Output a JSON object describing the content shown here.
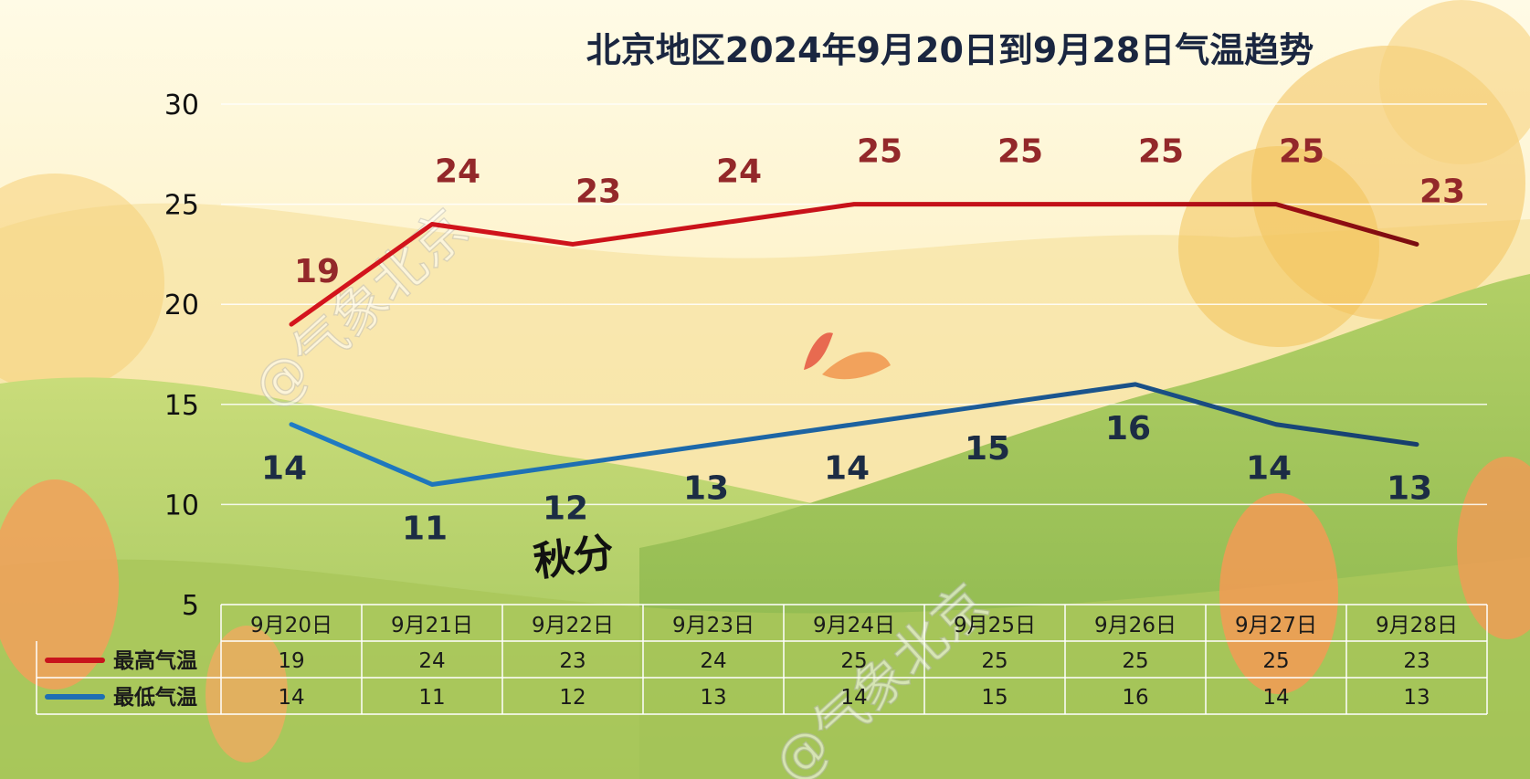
{
  "chart_data": {
    "type": "line",
    "title": "北京地区2024年9月20日到9月28日气温趋势",
    "categories": [
      "9月20日",
      "9月21日",
      "9月22日",
      "9月23日",
      "9月24日",
      "9月25日",
      "9月26日",
      "9月27日",
      "9月28日"
    ],
    "series": [
      {
        "name": "最高气温",
        "values": [
          19,
          24,
          23,
          24,
          25,
          25,
          25,
          25,
          23
        ],
        "color": "#c8141c"
      },
      {
        "name": "最低气温",
        "values": [
          14,
          11,
          12,
          13,
          14,
          15,
          16,
          14,
          13
        ],
        "color": "#1e6fb4"
      }
    ],
    "yticks": [
      5,
      10,
      15,
      20,
      25,
      30
    ],
    "ylim": [
      5,
      30
    ],
    "grid": true,
    "legend": "bottom-left data table",
    "colors": {
      "hi_label": "#93282a",
      "lo_label": "#1c2c44",
      "title": "#1a2640"
    }
  },
  "decor": {
    "watermark": "@气象北京",
    "badge": "秋分"
  }
}
